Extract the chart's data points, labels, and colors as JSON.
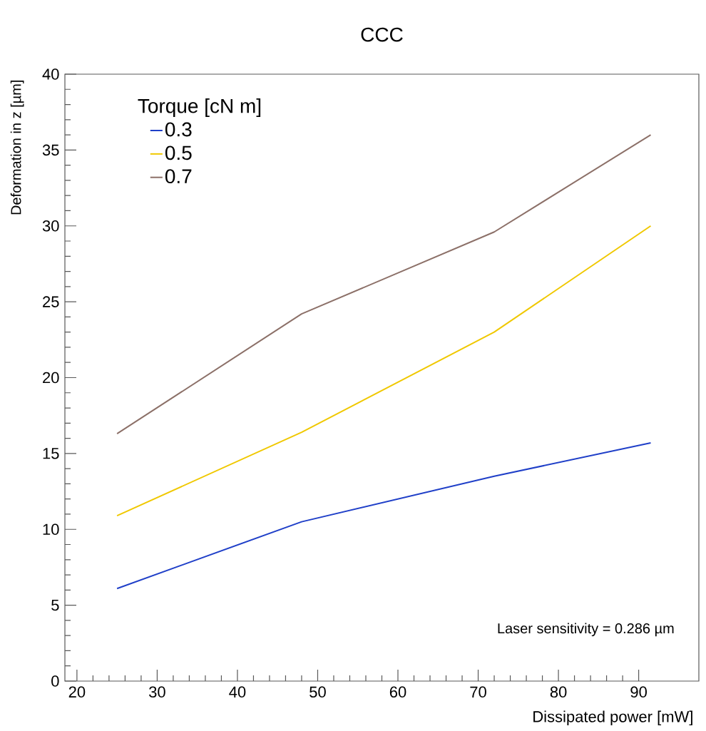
{
  "chart_data": {
    "type": "line",
    "title": "CCC",
    "xlabel": "Dissipated power [mW]",
    "ylabel": "Deformation in z [µm]",
    "legend_title": "Torque [cN m]",
    "annotations": [
      "Laser sensitivity = 0.286 µm"
    ],
    "x": [
      25,
      48,
      72,
      91.5
    ],
    "series": [
      {
        "name": "0.3",
        "color": "#1f3fc8",
        "values": [
          6.1,
          10.5,
          13.5,
          15.7
        ]
      },
      {
        "name": "0.5",
        "color": "#f0c800",
        "values": [
          10.9,
          16.4,
          23.0,
          30.0
        ]
      },
      {
        "name": "0.7",
        "color": "#8c7068",
        "values": [
          16.3,
          24.2,
          29.6,
          36.0
        ]
      }
    ],
    "xlim": [
      18.5,
      97.5
    ],
    "ylim": [
      0,
      40
    ],
    "xticks": [
      20,
      30,
      40,
      50,
      60,
      70,
      80,
      90
    ],
    "yticks": [
      0,
      5,
      10,
      15,
      20,
      25,
      30,
      35,
      40
    ],
    "grid": false,
    "legend": "top left",
    "marker": "none",
    "line_style": "solid"
  }
}
